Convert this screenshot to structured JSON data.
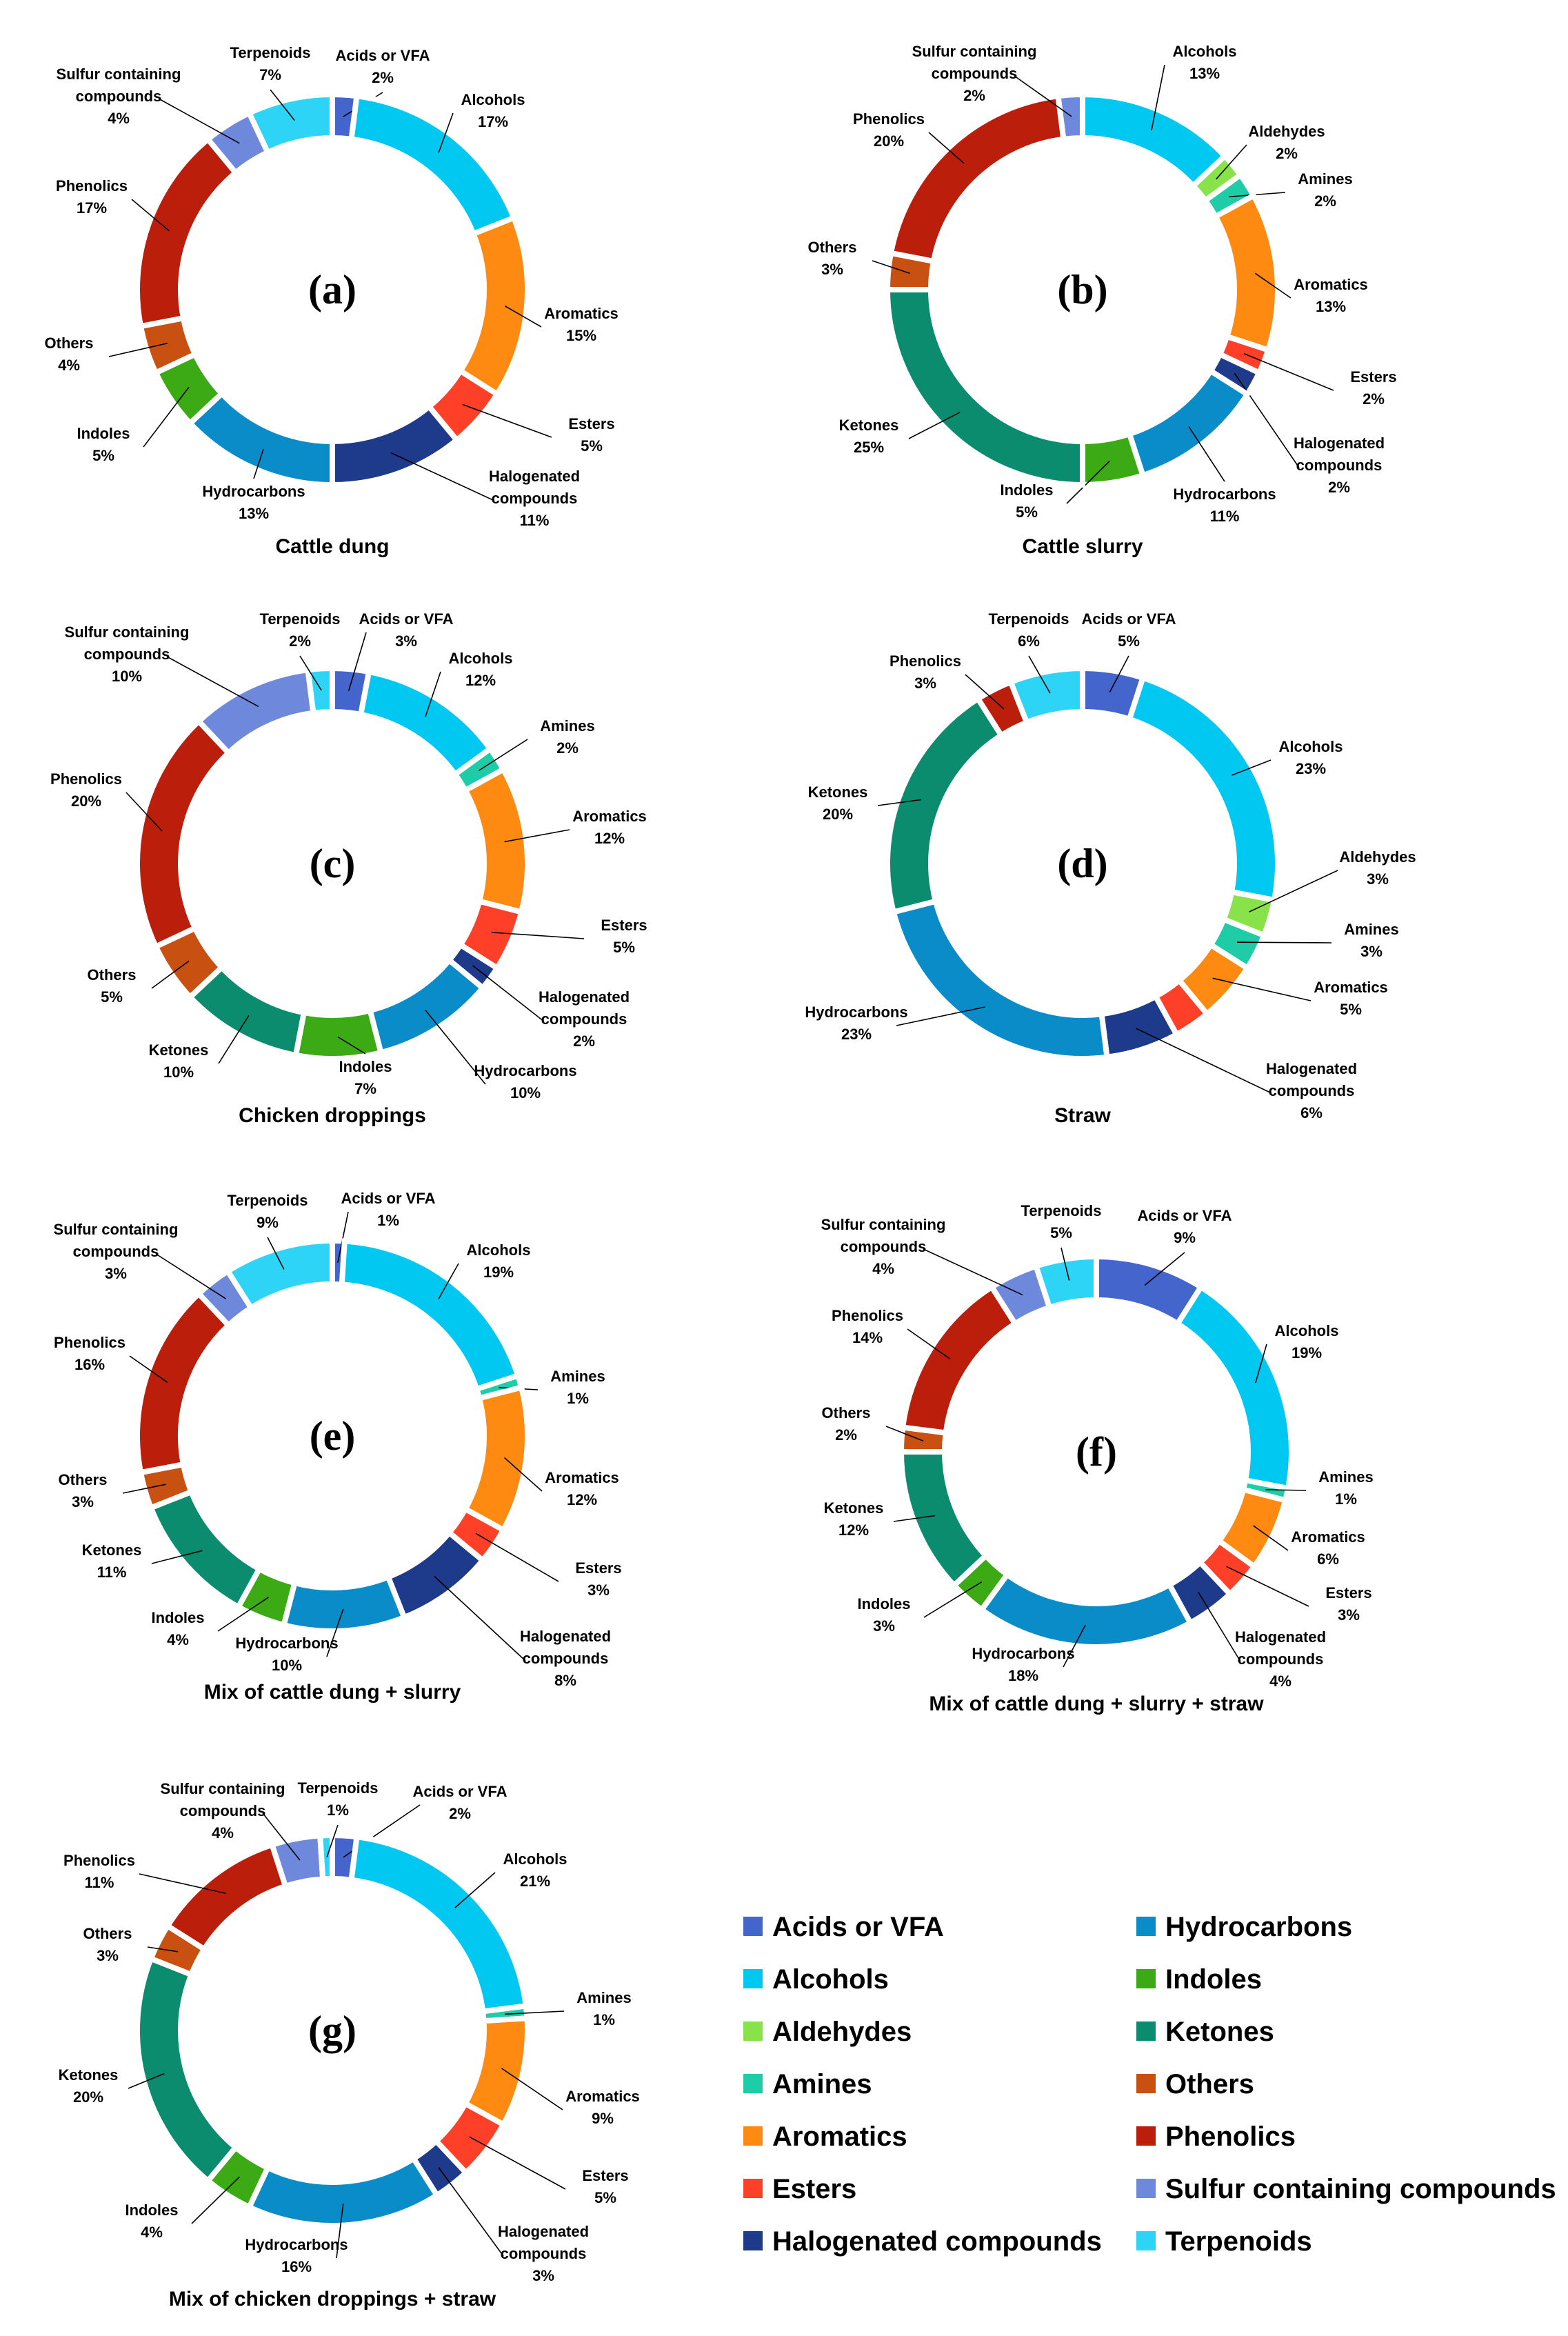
{
  "categories": [
    "Acids or VFA",
    "Alcohols",
    "Aldehydes",
    "Amines",
    "Aromatics",
    "Esters",
    "Halogenated compounds",
    "Hydrocarbons",
    "Indoles",
    "Ketones",
    "Others",
    "Phenolics",
    "Sulfur containing compounds",
    "Terpenoids"
  ],
  "colors": {
    "Acids or VFA": "#4466CC",
    "Alcohols": "#00C8F0",
    "Aldehydes": "#88E24A",
    "Amines": "#1ECCA8",
    "Aromatics": "#FF8A12",
    "Esters": "#FF4028",
    "Halogenated compounds": "#1E3A8A",
    "Hydrocarbons": "#0A8CC8",
    "Indoles": "#3BAA14",
    "Ketones": "#0B8C6E",
    "Others": "#C85010",
    "Phenolics": "#BB1E0A",
    "Sulfur containing compounds": "#6E88DC",
    "Terpenoids": "#2ED4F6"
  },
  "legend": {
    "left": [
      "Acids or VFA",
      "Alcohols",
      "Aldehydes",
      "Amines",
      "Aromatics",
      "Esters",
      "Halogenated compounds"
    ],
    "right": [
      "Hydrocarbons",
      "Indoles",
      "Ketones",
      "Others",
      "Phenolics",
      "Sulfur containing compounds",
      "Terpenoids"
    ]
  },
  "chart_data": [
    {
      "type": "donut",
      "letter": "(a)",
      "title": "Cattle dung",
      "slices": [
        {
          "name": "Acids or VFA",
          "value": 2,
          "label": "Acids or VFA",
          "pct": "2%"
        },
        {
          "name": "Alcohols",
          "value": 17,
          "label": "Alcohols",
          "pct": "17%"
        },
        {
          "name": "Aromatics",
          "value": 15,
          "label": "Aromatics",
          "pct": "15%"
        },
        {
          "name": "Esters",
          "value": 5,
          "label": "Esters",
          "pct": "5%"
        },
        {
          "name": "Halogenated compounds",
          "value": 11,
          "label": "Halogenated compounds",
          "pct": "11%"
        },
        {
          "name": "Hydrocarbons",
          "value": 13,
          "label": "Hydrocarbons",
          "pct": "13%"
        },
        {
          "name": "Indoles",
          "value": 5,
          "label": "Indoles",
          "pct": "5%"
        },
        {
          "name": "Others",
          "value": 4,
          "label": "Others",
          "pct": "4%"
        },
        {
          "name": "Phenolics",
          "value": 17,
          "label": "Phenolics",
          "pct": "17%"
        },
        {
          "name": "Sulfur containing compounds",
          "value": 4,
          "label": "Sulfur containing compounds",
          "pct": "4%"
        },
        {
          "name": "Terpenoids",
          "value": 7,
          "label": "Terpenoids",
          "pct": "7%"
        }
      ]
    },
    {
      "type": "donut",
      "letter": "(b)",
      "title": "Cattle slurry",
      "slices": [
        {
          "name": "Alcohols",
          "value": 13,
          "label": "Alcohols",
          "pct": "13%"
        },
        {
          "name": "Aldehydes",
          "value": 2,
          "label": "Aldehydes",
          "pct": "2%"
        },
        {
          "name": "Amines",
          "value": 2,
          "label": "Amines",
          "pct": "2%"
        },
        {
          "name": "Aromatics",
          "value": 13,
          "label": "Aromatics",
          "pct": "13%"
        },
        {
          "name": "Esters",
          "value": 2,
          "label": "Esters",
          "pct": "2%"
        },
        {
          "name": "Halogenated compounds",
          "value": 2,
          "label": "Halogenated compounds",
          "pct": "2%"
        },
        {
          "name": "Hydrocarbons",
          "value": 11,
          "label": "Hydrocarbons",
          "pct": "11%"
        },
        {
          "name": "Indoles",
          "value": 5,
          "label": "Indoles",
          "pct": "5%"
        },
        {
          "name": "Ketones",
          "value": 25,
          "label": "Ketones",
          "pct": "25%"
        },
        {
          "name": "Others",
          "value": 3,
          "label": "Others",
          "pct": "3%"
        },
        {
          "name": "Phenolics",
          "value": 20,
          "label": "Phenolics",
          "pct": "20%"
        },
        {
          "name": "Sulfur containing compounds",
          "value": 2,
          "label": "Sulfur containing compounds",
          "pct": "2%"
        }
      ]
    },
    {
      "type": "donut",
      "letter": "(c)",
      "title": "Chicken droppings",
      "slices": [
        {
          "name": "Acids or VFA",
          "value": 3,
          "label": "Acids or VFA",
          "pct": "3%"
        },
        {
          "name": "Alcohols",
          "value": 12,
          "label": "Alcohols",
          "pct": "12%"
        },
        {
          "name": "Amines",
          "value": 2,
          "label": "Amines",
          "pct": "2%"
        },
        {
          "name": "Aromatics",
          "value": 12,
          "label": "Aromatics",
          "pct": "12%"
        },
        {
          "name": "Esters",
          "value": 5,
          "label": "Esters",
          "pct": "5%"
        },
        {
          "name": "Halogenated compounds",
          "value": 2,
          "label": "Halogenated compounds",
          "pct": "2%"
        },
        {
          "name": "Hydrocarbons",
          "value": 10,
          "label": "Hydrocarbons",
          "pct": "10%"
        },
        {
          "name": "Indoles",
          "value": 7,
          "label": "Indoles",
          "pct": "7%"
        },
        {
          "name": "Ketones",
          "value": 10,
          "label": "Ketones",
          "pct": "10%"
        },
        {
          "name": "Others",
          "value": 5,
          "label": "Others",
          "pct": "5%"
        },
        {
          "name": "Phenolics",
          "value": 20,
          "label": "Phenolics",
          "pct": "20%"
        },
        {
          "name": "Sulfur containing compounds",
          "value": 10,
          "label": "Sulfur containing compounds",
          "pct": "10%"
        },
        {
          "name": "Terpenoids",
          "value": 2,
          "label": "Terpenoids",
          "pct": "2%"
        }
      ]
    },
    {
      "type": "donut",
      "letter": "(d)",
      "title": "Straw",
      "slices": [
        {
          "name": "Acids or VFA",
          "value": 5,
          "label": "Acids or VFA",
          "pct": "5%"
        },
        {
          "name": "Alcohols",
          "value": 23,
          "label": "Alcohols",
          "pct": "23%"
        },
        {
          "name": "Aldehydes",
          "value": 3,
          "label": "Aldehydes",
          "pct": "3%"
        },
        {
          "name": "Amines",
          "value": 3,
          "label": "Amines",
          "pct": "3%"
        },
        {
          "name": "Aromatics",
          "value": 5,
          "label": "Aromatics",
          "pct": "5%"
        },
        {
          "name": "Esters",
          "value": 3,
          "label": "",
          "pct": ""
        },
        {
          "name": "Halogenated compounds",
          "value": 6,
          "label": "Halogenated compounds",
          "pct": "6%"
        },
        {
          "name": "Hydrocarbons",
          "value": 23,
          "label": "Hydrocarbons",
          "pct": "23%"
        },
        {
          "name": "Ketones",
          "value": 20,
          "label": "Ketones",
          "pct": "20%"
        },
        {
          "name": "Phenolics",
          "value": 3,
          "label": "Phenolics",
          "pct": "3%"
        },
        {
          "name": "Terpenoids",
          "value": 6,
          "label": "Terpenoids",
          "pct": "6%"
        }
      ]
    },
    {
      "type": "donut",
      "letter": "(e)",
      "title": "Mix of cattle dung + slurry",
      "slices": [
        {
          "name": "Acids or VFA",
          "value": 1,
          "label": "Acids or VFA",
          "pct": "1%"
        },
        {
          "name": "Alcohols",
          "value": 19,
          "label": "Alcohols",
          "pct": "19%"
        },
        {
          "name": "Amines",
          "value": 1,
          "label": "Amines",
          "pct": "1%"
        },
        {
          "name": "Aromatics",
          "value": 12,
          "label": "Aromatics",
          "pct": "12%"
        },
        {
          "name": "Esters",
          "value": 3,
          "label": "Esters",
          "pct": "3%"
        },
        {
          "name": "Halogenated compounds",
          "value": 8,
          "label": "Halogenated compounds",
          "pct": "8%"
        },
        {
          "name": "Hydrocarbons",
          "value": 10,
          "label": "Hydrocarbons",
          "pct": "10%"
        },
        {
          "name": "Indoles",
          "value": 4,
          "label": "Indoles",
          "pct": "4%"
        },
        {
          "name": "Ketones",
          "value": 11,
          "label": "Ketones",
          "pct": "11%"
        },
        {
          "name": "Others",
          "value": 3,
          "label": "Others",
          "pct": "3%"
        },
        {
          "name": "Phenolics",
          "value": 16,
          "label": "Phenolics",
          "pct": "16%"
        },
        {
          "name": "Sulfur containing compounds",
          "value": 3,
          "label": "Sulfur containing compounds",
          "pct": "3%"
        },
        {
          "name": "Terpenoids",
          "value": 9,
          "label": "Terpenoids",
          "pct": "9%"
        }
      ]
    },
    {
      "type": "donut",
      "letter": "(f)",
      "title": "Mix of cattle dung + slurry + straw",
      "slices": [
        {
          "name": "Acids or VFA",
          "value": 9,
          "label": "Acids or VFA",
          "pct": "9%"
        },
        {
          "name": "Alcohols",
          "value": 19,
          "label": "Alcohols",
          "pct": "19%"
        },
        {
          "name": "Amines",
          "value": 1,
          "label": "Amines",
          "pct": "1%"
        },
        {
          "name": "Aromatics",
          "value": 6,
          "label": "Aromatics",
          "pct": "6%"
        },
        {
          "name": "Esters",
          "value": 3,
          "label": "Esters",
          "pct": "3%"
        },
        {
          "name": "Halogenated compounds",
          "value": 4,
          "label": "Halogenated compounds",
          "pct": "4%"
        },
        {
          "name": "Hydrocarbons",
          "value": 18,
          "label": "Hydrocarbons",
          "pct": "18%"
        },
        {
          "name": "Indoles",
          "value": 3,
          "label": "Indoles",
          "pct": "3%"
        },
        {
          "name": "Ketones",
          "value": 12,
          "label": "Ketones",
          "pct": "12%"
        },
        {
          "name": "Others",
          "value": 2,
          "label": "Others",
          "pct": "2%"
        },
        {
          "name": "Phenolics",
          "value": 14,
          "label": "Phenolics",
          "pct": "14%"
        },
        {
          "name": "Sulfur containing compounds",
          "value": 4,
          "label": "Sulfur containing compounds",
          "pct": "4%"
        },
        {
          "name": "Terpenoids",
          "value": 5,
          "label": "Terpenoids",
          "pct": "5%"
        }
      ]
    },
    {
      "type": "donut",
      "letter": "(g)",
      "title": "Mix of chicken droppings + straw",
      "slices": [
        {
          "name": "Acids or VFA",
          "value": 2,
          "label": "Acids or VFA",
          "pct": "2%"
        },
        {
          "name": "Alcohols",
          "value": 21,
          "label": "Alcohols",
          "pct": "21%"
        },
        {
          "name": "Amines",
          "value": 1,
          "label": "Amines",
          "pct": "1%"
        },
        {
          "name": "Aromatics",
          "value": 9,
          "label": "Aromatics",
          "pct": "9%"
        },
        {
          "name": "Esters",
          "value": 5,
          "label": "Esters",
          "pct": "5%"
        },
        {
          "name": "Halogenated compounds",
          "value": 3,
          "label": "Halogenated compounds",
          "pct": "3%"
        },
        {
          "name": "Hydrocarbons",
          "value": 16,
          "label": "Hydrocarbons",
          "pct": "16%"
        },
        {
          "name": "Indoles",
          "value": 4,
          "label": "Indoles",
          "pct": "4%"
        },
        {
          "name": "Ketones",
          "value": 20,
          "label": "Ketones",
          "pct": "20%"
        },
        {
          "name": "Others",
          "value": 3,
          "label": "Others",
          "pct": "3%"
        },
        {
          "name": "Phenolics",
          "value": 11,
          "label": "Phenolics",
          "pct": "11%"
        },
        {
          "name": "Sulfur containing compounds",
          "value": 4,
          "label": "Sulfur containing compounds",
          "pct": "4%"
        },
        {
          "name": "Terpenoids",
          "value": 1,
          "label": "Terpenoids",
          "pct": "1%"
        }
      ]
    }
  ]
}
